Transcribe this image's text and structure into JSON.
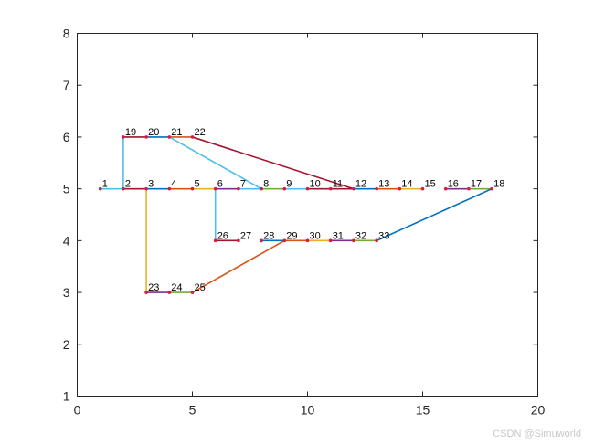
{
  "chart_data": {
    "type": "line",
    "title": "",
    "xlabel": "",
    "ylabel": "",
    "xlim": [
      0,
      20
    ],
    "ylim": [
      1,
      8
    ],
    "xticks": [
      0,
      5,
      10,
      15,
      20
    ],
    "yticks": [
      1,
      2,
      3,
      4,
      5,
      6,
      7,
      8
    ],
    "grid": false,
    "legend": "none",
    "nodes": [
      {
        "label": "1",
        "x": 1,
        "y": 5
      },
      {
        "label": "2",
        "x": 2,
        "y": 5
      },
      {
        "label": "3",
        "x": 3,
        "y": 5
      },
      {
        "label": "4",
        "x": 4,
        "y": 5
      },
      {
        "label": "5",
        "x": 5,
        "y": 5
      },
      {
        "label": "6",
        "x": 6,
        "y": 5
      },
      {
        "label": "7",
        "x": 7,
        "y": 5
      },
      {
        "label": "8",
        "x": 8,
        "y": 5
      },
      {
        "label": "9",
        "x": 9,
        "y": 5
      },
      {
        "label": "10",
        "x": 10,
        "y": 5
      },
      {
        "label": "11",
        "x": 11,
        "y": 5
      },
      {
        "label": "12",
        "x": 12,
        "y": 5
      },
      {
        "label": "13",
        "x": 13,
        "y": 5
      },
      {
        "label": "14",
        "x": 14,
        "y": 5
      },
      {
        "label": "15",
        "x": 15,
        "y": 5
      },
      {
        "label": "16",
        "x": 16,
        "y": 5
      },
      {
        "label": "17",
        "x": 17,
        "y": 5
      },
      {
        "label": "18",
        "x": 18,
        "y": 5
      },
      {
        "label": "19",
        "x": 2,
        "y": 6
      },
      {
        "label": "20",
        "x": 3,
        "y": 6
      },
      {
        "label": "21",
        "x": 4,
        "y": 6
      },
      {
        "label": "22",
        "x": 5,
        "y": 6
      },
      {
        "label": "23",
        "x": 3,
        "y": 3
      },
      {
        "label": "24",
        "x": 4,
        "y": 3
      },
      {
        "label": "25",
        "x": 5,
        "y": 3
      },
      {
        "label": "26",
        "x": 6,
        "y": 4
      },
      {
        "label": "27",
        "x": 7,
        "y": 4
      },
      {
        "label": "28",
        "x": 8,
        "y": 4
      },
      {
        "label": "29",
        "x": 9,
        "y": 4
      },
      {
        "label": "30",
        "x": 10,
        "y": 4
      },
      {
        "label": "31",
        "x": 11,
        "y": 4
      },
      {
        "label": "32",
        "x": 12,
        "y": 4
      },
      {
        "label": "33",
        "x": 13,
        "y": 4
      }
    ],
    "edges": [
      {
        "from": 1,
        "to": 2,
        "color": "#4DBEEE"
      },
      {
        "from": 2,
        "to": 3,
        "color": "#A2142F"
      },
      {
        "from": 3,
        "to": 4,
        "color": "#0072BD"
      },
      {
        "from": 4,
        "to": 5,
        "color": "#D95319"
      },
      {
        "from": 5,
        "to": 6,
        "color": "#EDB120"
      },
      {
        "from": 6,
        "to": 7,
        "color": "#7E2F8E"
      },
      {
        "from": 7,
        "to": 8,
        "color": "#4DBEEE"
      },
      {
        "from": 8,
        "to": 9,
        "color": "#77AC30"
      },
      {
        "from": 9,
        "to": 10,
        "color": "#4DBEEE"
      },
      {
        "from": 10,
        "to": 11,
        "color": "#A2142F"
      },
      {
        "from": 11,
        "to": 12,
        "color": "#A2142F"
      },
      {
        "from": 12,
        "to": 13,
        "color": "#0072BD"
      },
      {
        "from": 13,
        "to": 14,
        "color": "#D95319"
      },
      {
        "from": 14,
        "to": 15,
        "color": "#EDB120"
      },
      {
        "from": 16,
        "to": 17,
        "color": "#7E2F8E"
      },
      {
        "from": 17,
        "to": 18,
        "color": "#77AC30"
      },
      {
        "from": 2,
        "to": 19,
        "color": "#4DBEEE"
      },
      {
        "from": 19,
        "to": 20,
        "color": "#A2142F"
      },
      {
        "from": 20,
        "to": 21,
        "color": "#0072BD"
      },
      {
        "from": 21,
        "to": 22,
        "color": "#D95319"
      },
      {
        "from": 21,
        "to": 8,
        "color": "#4DBEEE"
      },
      {
        "from": 22,
        "to": 12,
        "color": "#A2142F"
      },
      {
        "from": 3,
        "to": 23,
        "color": "#EDB120"
      },
      {
        "from": 23,
        "to": 24,
        "color": "#7E2F8E"
      },
      {
        "from": 24,
        "to": 25,
        "color": "#77AC30"
      },
      {
        "from": 25,
        "to": 29,
        "color": "#D95319"
      },
      {
        "from": 6,
        "to": 26,
        "color": "#4DBEEE"
      },
      {
        "from": 26,
        "to": 27,
        "color": "#A2142F"
      },
      {
        "from": 28,
        "to": 29,
        "color": "#0072BD"
      },
      {
        "from": 29,
        "to": 30,
        "color": "#D95319"
      },
      {
        "from": 30,
        "to": 31,
        "color": "#EDB120"
      },
      {
        "from": 31,
        "to": 32,
        "color": "#7E2F8E"
      },
      {
        "from": 32,
        "to": 33,
        "color": "#77AC30"
      },
      {
        "from": 33,
        "to": 18,
        "color": "#0072BD"
      }
    ],
    "marker_color": "#D81B3F"
  },
  "watermark": "CSDN @Simuworld"
}
